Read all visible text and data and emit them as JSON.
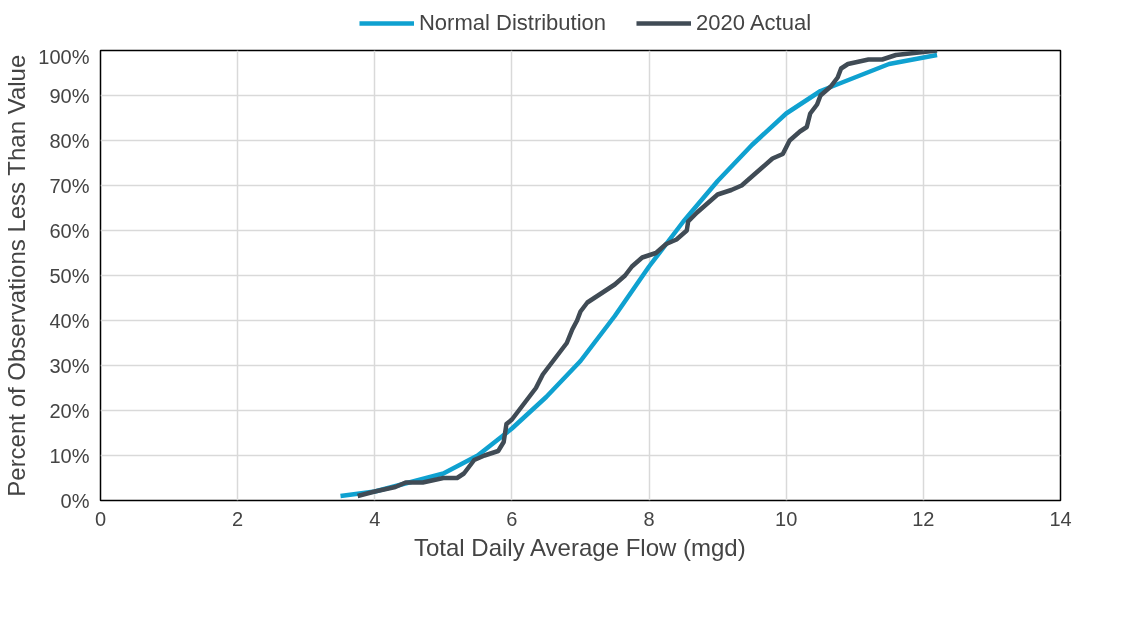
{
  "chart_data": {
    "type": "line",
    "xlabel": "Total Daily Average Flow (mgd)",
    "ylabel": "Percent of Observations Less Than Value",
    "xlim": [
      0,
      14
    ],
    "xticks": [
      0,
      2,
      4,
      6,
      8,
      10,
      12,
      14
    ],
    "ylim": [
      0,
      100
    ],
    "yticks": [
      {
        "value": 0,
        "label": "0%"
      },
      {
        "value": 10,
        "label": "10%"
      },
      {
        "value": 20,
        "label": "20%"
      },
      {
        "value": 30,
        "label": "30%"
      },
      {
        "value": 40,
        "label": "40%"
      },
      {
        "value": 50,
        "label": "50%"
      },
      {
        "value": 60,
        "label": "60%"
      },
      {
        "value": 70,
        "label": "70%"
      },
      {
        "value": 80,
        "label": "80%"
      },
      {
        "value": 90,
        "label": "90%"
      },
      {
        "value": 100,
        "label": "100%"
      }
    ],
    "grid": true,
    "legend": "top",
    "marker": "none",
    "line_style": "solid",
    "series": [
      {
        "name": "Normal Distribution",
        "color": "#0fa1d0",
        "x": [
          3.5,
          4,
          4.5,
          5,
          5.5,
          6,
          6.5,
          7,
          7.5,
          8,
          8.5,
          9,
          9.5,
          10,
          10.5,
          11,
          11.5,
          12.2
        ],
        "values": [
          1,
          2,
          4,
          6,
          10,
          16,
          23,
          31,
          41,
          52,
          62,
          71,
          79,
          86,
          91,
          94,
          97,
          99
        ]
      },
      {
        "name": "2020 Actual",
        "color": "#404b55",
        "x": [
          3.75,
          4.0,
          4.3,
          4.45,
          4.7,
          5.0,
          5.2,
          5.3,
          5.45,
          5.6,
          5.8,
          5.88,
          5.92,
          6.0,
          6.1,
          6.2,
          6.35,
          6.45,
          6.55,
          6.7,
          6.8,
          6.88,
          6.95,
          7.0,
          7.1,
          7.3,
          7.5,
          7.65,
          7.75,
          7.9,
          8.1,
          8.25,
          8.4,
          8.55,
          8.57,
          8.7,
          8.85,
          9.0,
          9.2,
          9.35,
          9.5,
          9.65,
          9.8,
          9.95,
          10.05,
          10.2,
          10.3,
          10.35,
          10.45,
          10.5,
          10.65,
          10.75,
          10.8,
          10.9,
          11.2,
          11.4,
          11.6,
          12.2
        ],
        "values": [
          1,
          2,
          3,
          4,
          4,
          5,
          5,
          6,
          9,
          10,
          11,
          13,
          17,
          18,
          20,
          22,
          25,
          28,
          30,
          33,
          35,
          38,
          40,
          42,
          44,
          46,
          48,
          50,
          52,
          54,
          55,
          57,
          58,
          60,
          62,
          64,
          66,
          68,
          69,
          70,
          72,
          74,
          76,
          77,
          80,
          82,
          83,
          86,
          88,
          90,
          92,
          94,
          96,
          97,
          98,
          98,
          99,
          100
        ]
      }
    ]
  }
}
